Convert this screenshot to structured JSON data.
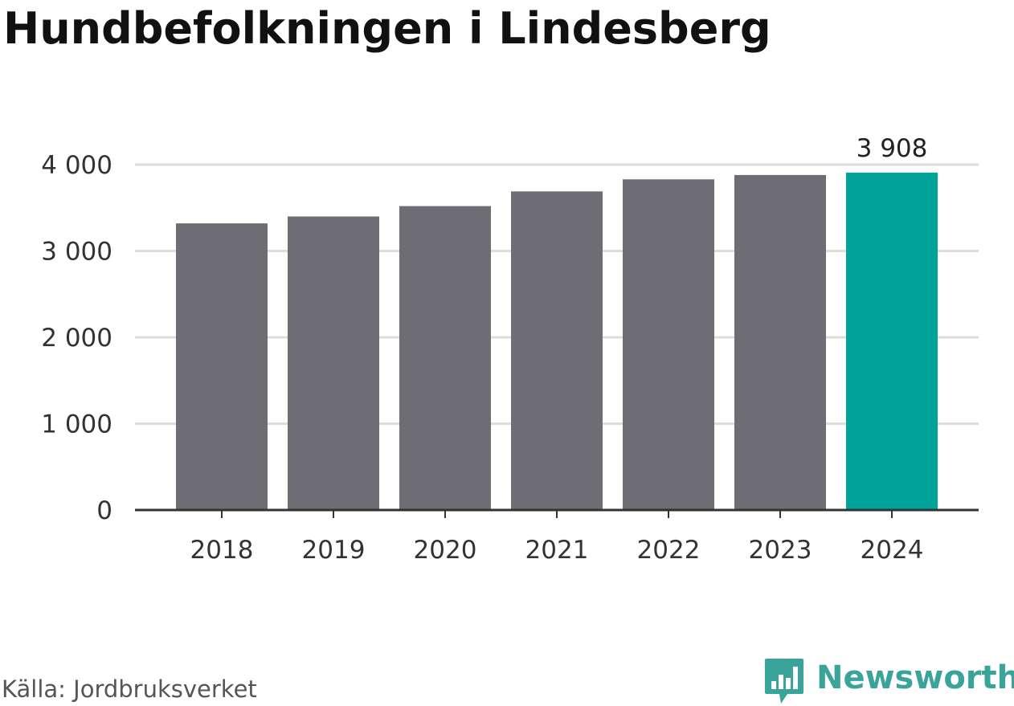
{
  "chart_data": {
    "type": "bar",
    "title": "Hundbefolkningen i Lindesberg",
    "categories": [
      "2018",
      "2019",
      "2020",
      "2021",
      "2022",
      "2023",
      "2024"
    ],
    "values": [
      3320,
      3400,
      3520,
      3690,
      3830,
      3880,
      3908
    ],
    "highlight_index": 6,
    "highlight_label": "3 908",
    "y_ticks": [
      0,
      1000,
      2000,
      3000,
      4000
    ],
    "y_tick_labels": [
      "0",
      "1 000",
      "2 000",
      "3 000",
      "4 000"
    ],
    "ylim": [
      0,
      4000
    ],
    "grid": true,
    "colors": {
      "bar": "#6e6d73",
      "highlight": "#00a39a",
      "grid": "#dddddd",
      "axis": "#333333"
    }
  },
  "footer": {
    "source": "Källa: Jordbruksverket",
    "brand": "Newsworthy",
    "brand_icon": "bar-chart-speech-bubble-icon",
    "brand_color": "#3aa39a"
  }
}
